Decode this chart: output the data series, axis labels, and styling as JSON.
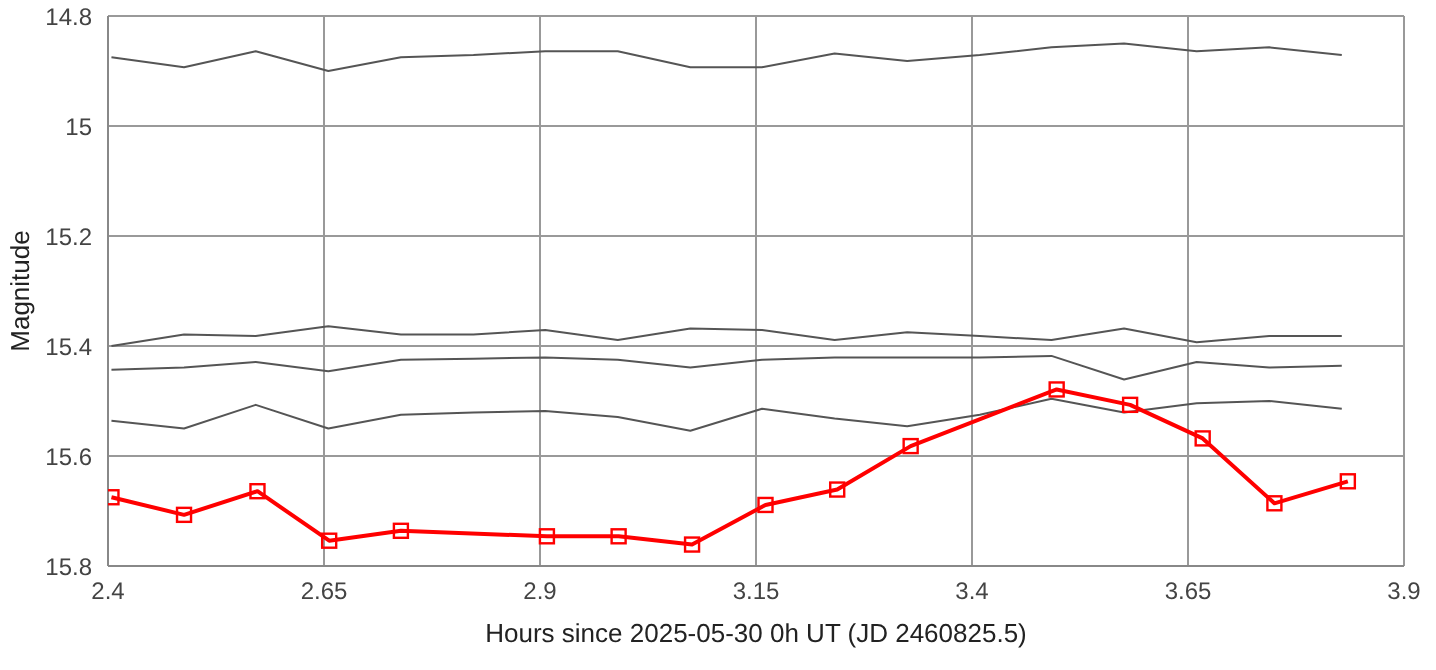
{
  "chart_data": {
    "type": "line",
    "xlabel": "Hours since 2025-05-30 0h UT (JD 2460825.5)",
    "ylabel": "Magnitude",
    "xlim": [
      2.4,
      3.9
    ],
    "xticks": [
      2.4,
      2.65,
      2.9,
      3.15,
      3.4,
      3.65,
      3.9
    ],
    "ylim": [
      15.8,
      14.8
    ],
    "yticks": [
      14.8,
      15,
      15.2,
      15.4,
      15.6,
      15.8
    ],
    "grid": true,
    "marker": "square",
    "line_style": "solid",
    "series": [
      {
        "color": "#555555",
        "marker": "none",
        "x": [
          2.404,
          2.488,
          2.571,
          2.655,
          2.739,
          2.823,
          2.906,
          2.99,
          3.074,
          3.157,
          3.241,
          3.325,
          3.409,
          3.492,
          3.576,
          3.66,
          3.744,
          3.828
        ],
        "values": [
          14.875,
          14.893,
          14.864,
          14.9,
          14.875,
          14.871,
          14.864,
          14.864,
          14.893,
          14.893,
          14.868,
          14.882,
          14.871,
          14.857,
          14.85,
          14.864,
          14.857,
          14.871
        ]
      },
      {
        "color": "#555555",
        "marker": "none",
        "x": [
          2.404,
          2.488,
          2.571,
          2.655,
          2.739,
          2.823,
          2.906,
          2.99,
          3.074,
          3.157,
          3.241,
          3.325,
          3.409,
          3.492,
          3.576,
          3.66,
          3.744,
          3.828
        ],
        "values": [
          15.4,
          15.379,
          15.382,
          15.364,
          15.379,
          15.379,
          15.371,
          15.389,
          15.368,
          15.371,
          15.389,
          15.375,
          15.382,
          15.389,
          15.368,
          15.393,
          15.382,
          15.382
        ]
      },
      {
        "color": "#555555",
        "marker": "none",
        "x": [
          2.404,
          2.488,
          2.571,
          2.655,
          2.739,
          2.823,
          2.906,
          2.99,
          3.074,
          3.157,
          3.241,
          3.325,
          3.409,
          3.492,
          3.576,
          3.66,
          3.744,
          3.828
        ],
        "values": [
          15.443,
          15.439,
          15.429,
          15.446,
          15.425,
          15.423,
          15.421,
          15.425,
          15.439,
          15.425,
          15.421,
          15.421,
          15.421,
          15.418,
          15.461,
          15.429,
          15.439,
          15.436
        ]
      },
      {
        "color": "#555555",
        "marker": "none",
        "x": [
          2.404,
          2.488,
          2.571,
          2.655,
          2.739,
          2.823,
          2.906,
          2.99,
          3.074,
          3.157,
          3.241,
          3.325,
          3.409,
          3.492,
          3.576,
          3.66,
          3.744,
          3.828
        ],
        "values": [
          15.536,
          15.55,
          15.507,
          15.55,
          15.525,
          15.521,
          15.518,
          15.529,
          15.554,
          15.514,
          15.532,
          15.546,
          15.525,
          15.496,
          15.521,
          15.504,
          15.5,
          15.514
        ]
      },
      {
        "color": "#ff0000",
        "x": [
          2.404,
          2.488,
          2.573,
          2.656,
          2.739,
          2.908,
          2.991,
          3.076,
          3.161,
          3.244,
          3.329,
          3.498,
          3.583,
          3.667,
          3.75,
          3.835
        ],
        "values": [
          15.675,
          15.707,
          15.664,
          15.754,
          15.736,
          15.746,
          15.746,
          15.761,
          15.689,
          15.661,
          15.582,
          15.479,
          15.507,
          15.568,
          15.686,
          15.646
        ]
      }
    ]
  }
}
